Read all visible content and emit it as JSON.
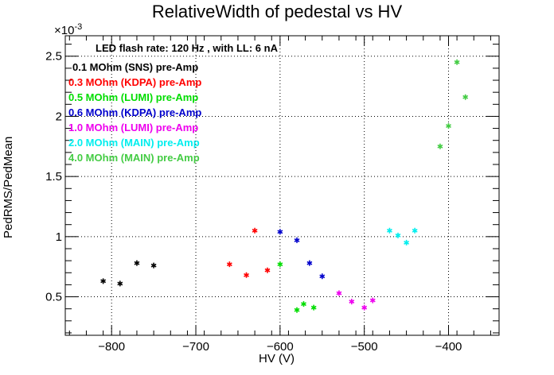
{
  "title": "RelativeWidth of pedestal vs HV",
  "xlabel": "HV (V)",
  "ylabel": "PedRMS/PedMean",
  "y_exponent": "×10",
  "y_exponent_power": "-3",
  "annotations": {
    "flash": "LED flash rate: 120 Hz , with LL: 6 nA",
    "lines": [
      {
        "text": "0.1 MOhm (SNS) pre-Amp",
        "color": "#000000"
      },
      {
        "text": "0.3 MOhm (KDPA) pre-Amp",
        "color": "#ff0000"
      },
      {
        "text": "0.5 MOhm (LUMI) pre-Amp",
        "color": "#00dd00"
      },
      {
        "text": "0.6 MOhm (KDPA) pre-Amp",
        "color": "#0000cc"
      },
      {
        "text": "1.0 MOhm (LUMI) pre-Amp",
        "color": "#ee00ee"
      },
      {
        "text": "2.0 MOhm (MAIN) pre-Amp",
        "color": "#00eeee"
      },
      {
        "text": "4.0 MOhm (MAIN) pre-Amp",
        "color": "#44cc44"
      }
    ]
  },
  "chart_data": {
    "type": "scatter",
    "title": "RelativeWidth of pedestal vs HV",
    "xlabel": "HV (V)",
    "ylabel": "PedRMS/PedMean",
    "xlim": [
      -855,
      -340
    ],
    "ylim": [
      0.18,
      2.67
    ],
    "y_scale_note": "x10^-3",
    "x_ticks": [
      -800,
      -700,
      -600,
      -500,
      -400
    ],
    "x_tick_labels": [
      "−800",
      "−700",
      "−600",
      "−500",
      "−400"
    ],
    "y_ticks": [
      0.5,
      1,
      1.5,
      2,
      2.5
    ],
    "y_tick_labels": [
      "0.5",
      "1",
      "1.5",
      "2",
      "2.5"
    ],
    "grid": true,
    "series": [
      {
        "name": "0.1 MOhm (SNS) pre-Amp",
        "color": "#000000",
        "points": [
          [
            -810,
            0.63
          ],
          [
            -790,
            0.61
          ],
          [
            -770,
            0.78
          ],
          [
            -750,
            0.76
          ]
        ]
      },
      {
        "name": "0.3 MOhm (KDPA) pre-Amp",
        "color": "#ff0000",
        "points": [
          [
            -660,
            0.77
          ],
          [
            -640,
            0.68
          ],
          [
            -630,
            1.05
          ],
          [
            -615,
            0.72
          ]
        ]
      },
      {
        "name": "0.5 MOhm (LUMI) pre-Amp",
        "color": "#00dd00",
        "points": [
          [
            -600,
            0.77
          ],
          [
            -580,
            0.39
          ],
          [
            -572,
            0.44
          ],
          [
            -560,
            0.41
          ]
        ]
      },
      {
        "name": "0.6 MOhm (KDPA) pre-Amp",
        "color": "#0000cc",
        "points": [
          [
            -600,
            1.04
          ],
          [
            -580,
            0.97
          ],
          [
            -565,
            0.78
          ],
          [
            -550,
            0.67
          ]
        ]
      },
      {
        "name": "1.0 MOhm (LUMI) pre-Amp",
        "color": "#ee00ee",
        "points": [
          [
            -530,
            0.53
          ],
          [
            -515,
            0.46
          ],
          [
            -500,
            0.41
          ],
          [
            -490,
            0.47
          ]
        ]
      },
      {
        "name": "2.0 MOhm (MAIN) pre-Amp",
        "color": "#00eeee",
        "points": [
          [
            -470,
            1.05
          ],
          [
            -460,
            1.01
          ],
          [
            -450,
            0.95
          ],
          [
            -440,
            1.05
          ]
        ]
      },
      {
        "name": "4.0 MOhm (MAIN) pre-Amp",
        "color": "#44cc44",
        "points": [
          [
            -410,
            1.75
          ],
          [
            -400,
            1.92
          ],
          [
            -390,
            2.45
          ],
          [
            -380,
            2.16
          ]
        ]
      }
    ]
  }
}
